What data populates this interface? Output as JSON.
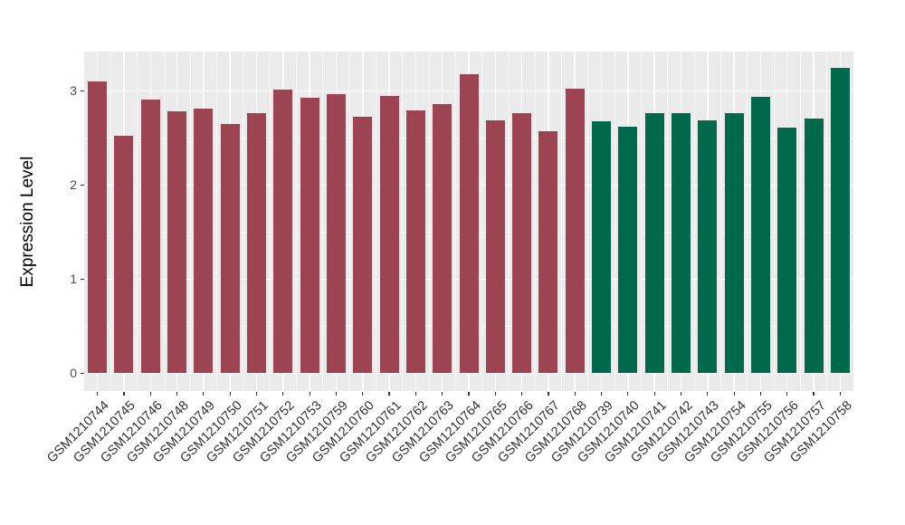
{
  "figure": {
    "background": "#ffffff",
    "panel_background": "#ebebeb",
    "grid_color": "#ffffff",
    "tick_color": "#333333",
    "y_text_color": "#4d4d4d",
    "x_text_color": "#303030"
  },
  "chart_data": {
    "type": "bar",
    "title": "",
    "xlabel": "",
    "ylabel": "Expression Level",
    "legend_position": "none",
    "grid": "on",
    "ylim": [
      -0.19,
      3.42
    ],
    "yticks": [
      0,
      1,
      2,
      3
    ],
    "minor_yticks": [
      0.5,
      1.5,
      2.5
    ],
    "categories": [
      "GSM1210744",
      "GSM1210745",
      "GSM1210746",
      "GSM1210748",
      "GSM1210749",
      "GSM1210750",
      "GSM1210751",
      "GSM1210752",
      "GSM1210753",
      "GSM1210759",
      "GSM1210760",
      "GSM1210761",
      "GSM1210762",
      "GSM1210763",
      "GSM1210764",
      "GSM1210765",
      "GSM1210766",
      "GSM1210767",
      "GSM1210768",
      "GSM1210739",
      "GSM1210740",
      "GSM1210741",
      "GSM1210742",
      "GSM1210743",
      "GSM1210754",
      "GSM1210755",
      "GSM1210756",
      "GSM1210757",
      "GSM1210758"
    ],
    "values": [
      3.1,
      2.52,
      2.91,
      2.78,
      2.81,
      2.65,
      2.77,
      3.02,
      2.93,
      2.97,
      2.73,
      2.95,
      2.79,
      2.86,
      3.18,
      2.69,
      2.77,
      2.57,
      3.03,
      2.68,
      2.62,
      2.77,
      2.77,
      2.69,
      2.77,
      2.94,
      2.61,
      2.71,
      3.25
    ],
    "groups": [
      "red",
      "red",
      "red",
      "red",
      "red",
      "red",
      "red",
      "red",
      "red",
      "red",
      "red",
      "red",
      "red",
      "red",
      "red",
      "red",
      "red",
      "red",
      "red",
      "green",
      "green",
      "green",
      "green",
      "green",
      "green",
      "green",
      "green",
      "green",
      "green"
    ],
    "colors": {
      "red": "#9d4452",
      "green": "#00694b"
    }
  }
}
